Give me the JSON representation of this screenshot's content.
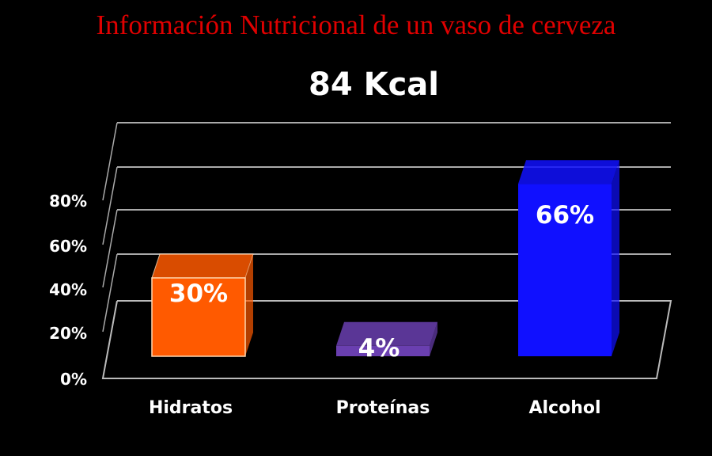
{
  "chart_data": {
    "type": "bar",
    "title": "Información Nutricional de un vaso de cerveza",
    "subtitle": "84 Kcal",
    "categories": [
      "Hidratos",
      "Proteínas",
      "Alcohol"
    ],
    "values": [
      30,
      4,
      66
    ],
    "data_labels": [
      "30%",
      "4%",
      "66%"
    ],
    "colors": [
      "#ff5a00",
      "#6a3fb0",
      "#1010ff"
    ],
    "yticks": [
      "0%",
      "20%",
      "40%",
      "60%",
      "80%"
    ],
    "ylim": [
      0,
      100
    ],
    "xlabel": "",
    "ylabel": "",
    "grid": true,
    "style": "3d"
  }
}
